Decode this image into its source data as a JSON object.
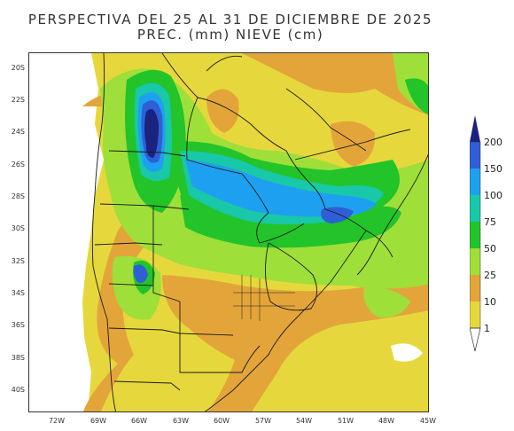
{
  "title_line1": "PERSPECTIVA DEL 25 AL 31 DE DICIEMBRE DE 2025",
  "title_line2": "PREC. (mm) NIEVE (cm)",
  "lat_ticks": [
    "20S",
    "22S",
    "24S",
    "26S",
    "28S",
    "30S",
    "32S",
    "34S",
    "36S",
    "38S",
    "40S"
  ],
  "lon_ticks": [
    "72W",
    "69W",
    "66W",
    "63W",
    "60W",
    "57W",
    "54W",
    "51W",
    "48W",
    "45W"
  ],
  "legend": {
    "levels": [
      "200",
      "150",
      "100",
      "75",
      "50",
      "25",
      "10",
      "1"
    ],
    "colors": {
      "c200": "#1a237e",
      "c150": "#2e5fd6",
      "c100": "#1ea0f0",
      "c75": "#18c8a8",
      "c50": "#22c42a",
      "c25": "#9fdf3a",
      "c10": "#e3a53a",
      "c1": "#e6d83c",
      "c0": "#ffffff"
    }
  }
}
